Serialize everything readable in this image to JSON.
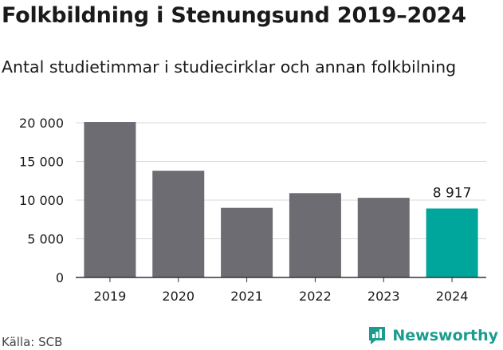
{
  "header": {
    "title": "Folkbildning i Stenungsund 2019–2024",
    "subtitle": "Antal studietimmar i studiecirklar och annan folkbilning"
  },
  "footer": {
    "source": "Källa: SCB",
    "brand": "Newsworthy",
    "brand_icon": "newsworthy-logo-icon"
  },
  "colors": {
    "bar_default": "#6d6c72",
    "bar_highlight": "#00a69b",
    "grid": "#d9d9d9",
    "axis": "#333333",
    "brand": "#1a9c8e"
  },
  "chart_data": {
    "type": "bar",
    "categories": [
      "2019",
      "2020",
      "2021",
      "2022",
      "2023",
      "2024"
    ],
    "values": [
      20100,
      13800,
      9000,
      10900,
      10300,
      8917
    ],
    "highlight_index": 5,
    "annotation": {
      "index": 5,
      "text": "8 917"
    },
    "ylim": [
      0,
      20000
    ],
    "yticks": [
      0,
      5000,
      10000,
      15000,
      20000
    ],
    "ytick_labels": [
      "0",
      "5 000",
      "10 000",
      "15 000",
      "20 000"
    ],
    "grid": true,
    "xlabel": "",
    "ylabel": ""
  }
}
